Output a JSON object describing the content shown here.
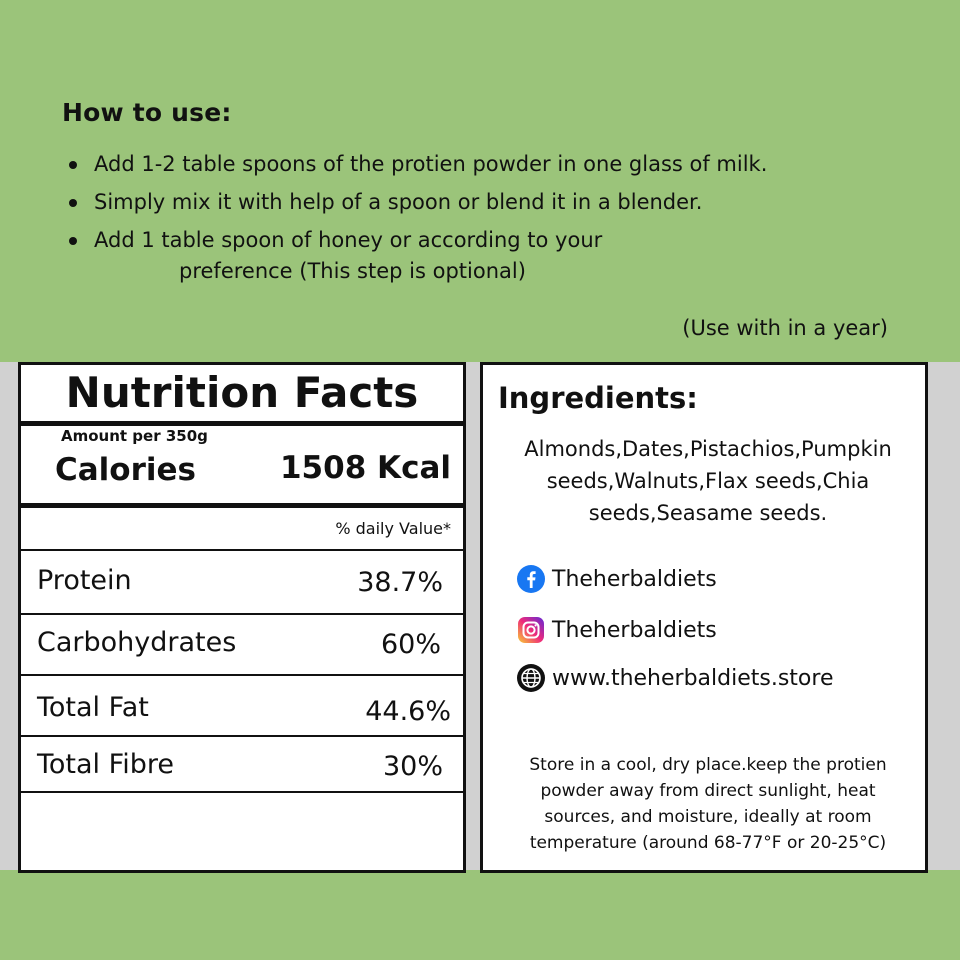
{
  "how_to_use": {
    "heading": "How to use:",
    "steps": [
      "Add 1-2 table spoons of the protien powder in one glass of milk.",
      "Simply mix it with help of a spoon or blend it in a blender.",
      "Add 1 table spoon of honey or according to your"
    ],
    "step3_continuation": "preference (This step is optional)",
    "note": "(Use with in a year)"
  },
  "nutrition": {
    "title": "Nutrition Facts",
    "amount": "Amount per 350g",
    "calories_label": "Calories",
    "calories_value": "1508 Kcal",
    "daily_value_label": "% daily Value*",
    "rows": [
      {
        "label": "Protein",
        "value": "38.7%"
      },
      {
        "label": "Carbohydrates",
        "value": "60%"
      },
      {
        "label": "Total Fat",
        "value": "44.6%"
      },
      {
        "label": "Total Fibre",
        "value": "30%"
      }
    ]
  },
  "ingredients": {
    "heading": "Ingredients:",
    "line1": "Almonds,Dates,Pistachios,Pumpkin",
    "line2": "seeds,Walnuts,Flax seeds,Chia",
    "line3": "seeds,Seasame seeds.",
    "social": [
      {
        "icon": "facebook-icon",
        "text": "Theherbaldiets"
      },
      {
        "icon": "instagram-icon",
        "text": "Theherbaldiets"
      },
      {
        "icon": "globe-icon",
        "text": "www.theherbaldiets.store"
      }
    ],
    "storage_lines": [
      "Store in a cool, dry place.keep the protien",
      "powder away from direct sunlight, heat",
      "sources, and moisture, ideally at room",
      "temperature (around 68-77°F or 20-25°C)"
    ]
  },
  "colors": {
    "background": "#9bc47a",
    "facebook": "#1877f2",
    "border": "#111111"
  }
}
